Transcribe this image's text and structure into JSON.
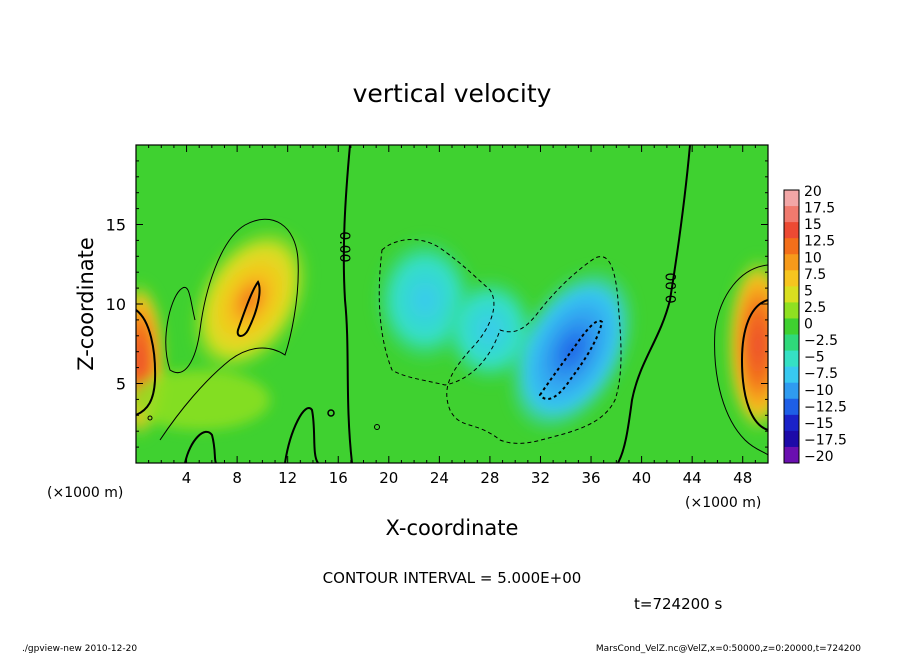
{
  "chart_data": {
    "type": "heatmap",
    "title": "vertical velocity",
    "xlabel": "X-coordinate",
    "ylabel": "Z-coordinate",
    "x_unit": "(×1000 m)",
    "x_unit_right": "(×1000 m)",
    "xlim": [
      0,
      50
    ],
    "ylim": [
      0,
      20
    ],
    "x_ticks": [
      4,
      8,
      12,
      16,
      20,
      24,
      28,
      32,
      36,
      40,
      44,
      48
    ],
    "y_ticks": [
      5,
      10,
      15
    ],
    "colorbar": {
      "labels": [
        "20",
        "17.5",
        "15",
        "12.5",
        "10",
        "7.5",
        "5",
        "2.5",
        "0",
        "−2.5",
        "−5",
        "−7.5",
        "−10",
        "−12.5",
        "−15",
        "−17.5",
        "−20"
      ],
      "colors": [
        "#f2a6a6",
        "#f07a6e",
        "#ec4a33",
        "#f36f1a",
        "#f69a1a",
        "#f6c51f",
        "#d9df20",
        "#8fe021",
        "#3fd130",
        "#2fd97a",
        "#35e0c4",
        "#38c9f0",
        "#2f9bf0",
        "#1e5fe6",
        "#1a22c8",
        "#1d0aa8",
        "#6a10b0"
      ]
    },
    "contour_labels": [
      "0.00",
      "0.00"
    ],
    "contour_interval_text": "CONTOUR INTERVAL = 5.000E+00",
    "time_text": "t=724200 s",
    "footer_left": "./gpview-new  2010-12-20",
    "footer_right": "MarsCond_VelZ.nc@VelZ,x=0:50000,z=0:20000,t=724200"
  }
}
